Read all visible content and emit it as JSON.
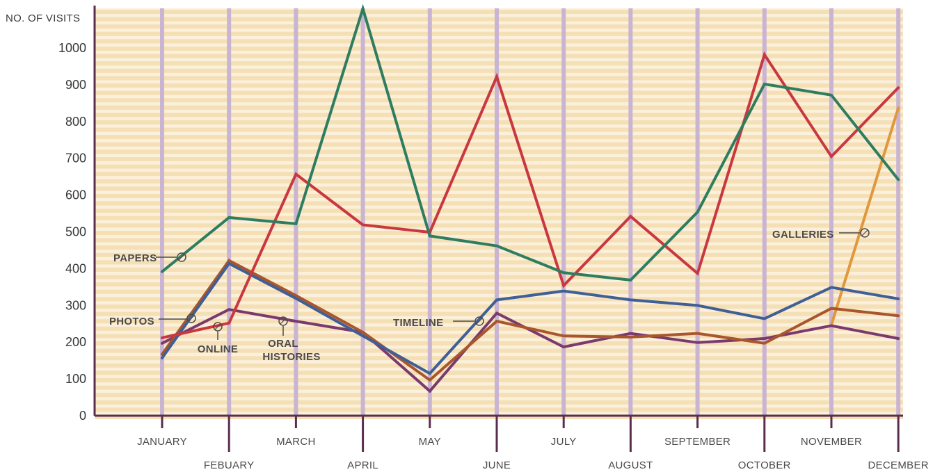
{
  "chart_data": {
    "type": "line",
    "ylabel": "NO. OF VISITS",
    "categories": [
      "JANUARY",
      "FEBUARY",
      "MARCH",
      "APRIL",
      "MAY",
      "JUNE",
      "JULY",
      "AUGUST",
      "SEPTEMBER",
      "OCTOBER",
      "NOVEMBER",
      "DECEMBER"
    ],
    "ylim": [
      0,
      1100
    ],
    "yticks": [
      0,
      100,
      200,
      300,
      400,
      500,
      600,
      700,
      800,
      900,
      1000
    ],
    "grid": "horizontal stripes, vertical month lines",
    "series": [
      {
        "name": "PAPERS",
        "color": "#2e7d60",
        "values": [
          390,
          537,
          520,
          1105,
          487,
          460,
          387,
          367,
          552,
          900,
          870,
          640
        ]
      },
      {
        "name": "ONLINE",
        "color": "#c9373f",
        "values": [
          210,
          250,
          655,
          517,
          497,
          920,
          352,
          540,
          385,
          980,
          703,
          890
        ]
      },
      {
        "name": "PHOTOS",
        "color": "#a9562c",
        "values": [
          165,
          420,
          325,
          225,
          95,
          255,
          215,
          212,
          222,
          195,
          290,
          270
        ]
      },
      {
        "name": "TIMELINE",
        "color": "#3f5f96",
        "values": [
          155,
          412,
          317,
          215,
          113,
          313,
          337,
          313,
          298,
          262,
          347,
          316
        ]
      },
      {
        "name": "ORAL HISTORIES",
        "color": "#7a3a6e",
        "values": [
          195,
          287,
          255,
          225,
          65,
          277,
          185,
          222,
          197,
          208,
          243,
          208
        ]
      },
      {
        "name": "GALLERIES",
        "color": "#e0983e",
        "x_start_index": 10,
        "values": [
          null,
          null,
          null,
          null,
          null,
          null,
          null,
          null,
          null,
          null,
          245,
          835
        ]
      }
    ],
    "annotations": [
      {
        "text": "PAPERS",
        "series": "PAPERS"
      },
      {
        "text": "PHOTOS",
        "series": "PHOTOS"
      },
      {
        "text": "ONLINE",
        "series": "ONLINE"
      },
      {
        "text_lines": [
          "ORAL",
          "HISTORIES"
        ],
        "series": "ORAL HISTORIES"
      },
      {
        "text": "TIMELINE",
        "series": "TIMELINE"
      },
      {
        "text": "GALLERIES",
        "series": "GALLERIES"
      }
    ]
  },
  "colors": {
    "stripe_light": "#fbf0dc",
    "stripe_dark": "#f5dfb5",
    "month_line": "#c9b4d2",
    "axis": "#5a2d4e",
    "text": "#3a3a3a"
  }
}
